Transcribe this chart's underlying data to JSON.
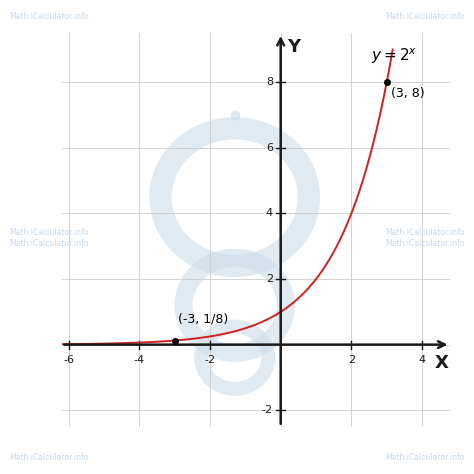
{
  "xlim": [
    -6.2,
    4.8
  ],
  "ylim": [
    -2.5,
    9.5
  ],
  "xticks": [
    -6,
    -4,
    -2,
    2,
    4
  ],
  "yticks": [
    -2,
    2,
    4,
    6,
    8
  ],
  "xlabel": "X",
  "ylabel": "Y",
  "curve_color": "#cc2222",
  "curve_linewidth": 1.4,
  "point1_x": -3,
  "point1_y": 0.125,
  "point1_label": "(-3, 1/8)",
  "point2_x": 3,
  "point2_y": 8,
  "point2_label": "(3, 8)",
  "background_color": "#ffffff",
  "grid_color": "#cccccc",
  "axis_color": "#1a1a1a",
  "watermark_text": "Math.iCalculator.info",
  "watermark_color": "#c5d8e8",
  "label_fontsize": 9,
  "equation_fontsize": 11,
  "tick_fontsize": 8,
  "wm_circle_color": "#cfdde8",
  "fig_width": 4.74,
  "fig_height": 4.74,
  "dpi": 100
}
